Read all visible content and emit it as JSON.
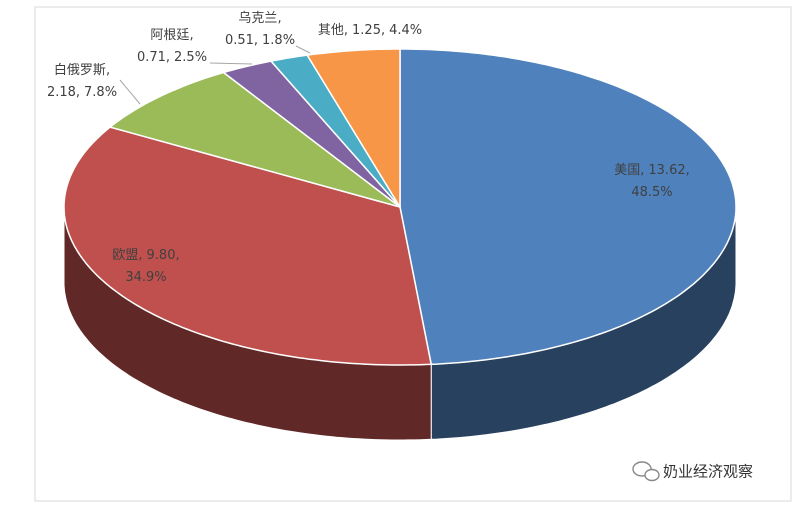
{
  "chart_data": {
    "type": "pie",
    "categories": [
      "美国",
      "欧盟",
      "白俄罗斯",
      "阿根廷",
      "乌克兰",
      "其他"
    ],
    "values": [
      13.62,
      9.8,
      2.18,
      0.71,
      0.51,
      1.25
    ],
    "value_labels": [
      "13.62",
      "9.80",
      "2.18",
      "0.71",
      "0.51",
      "1.25"
    ],
    "percent_labels": [
      "48.5%",
      "34.9%",
      "7.8%",
      "2.5%",
      "1.8%",
      "4.4%"
    ],
    "label_separator": ",",
    "colors": [
      "#4f81bd",
      "#c0504d",
      "#9bbb59",
      "#8064a2",
      "#4bacc6",
      "#f79646"
    ]
  },
  "watermark": "奶业经济观察"
}
